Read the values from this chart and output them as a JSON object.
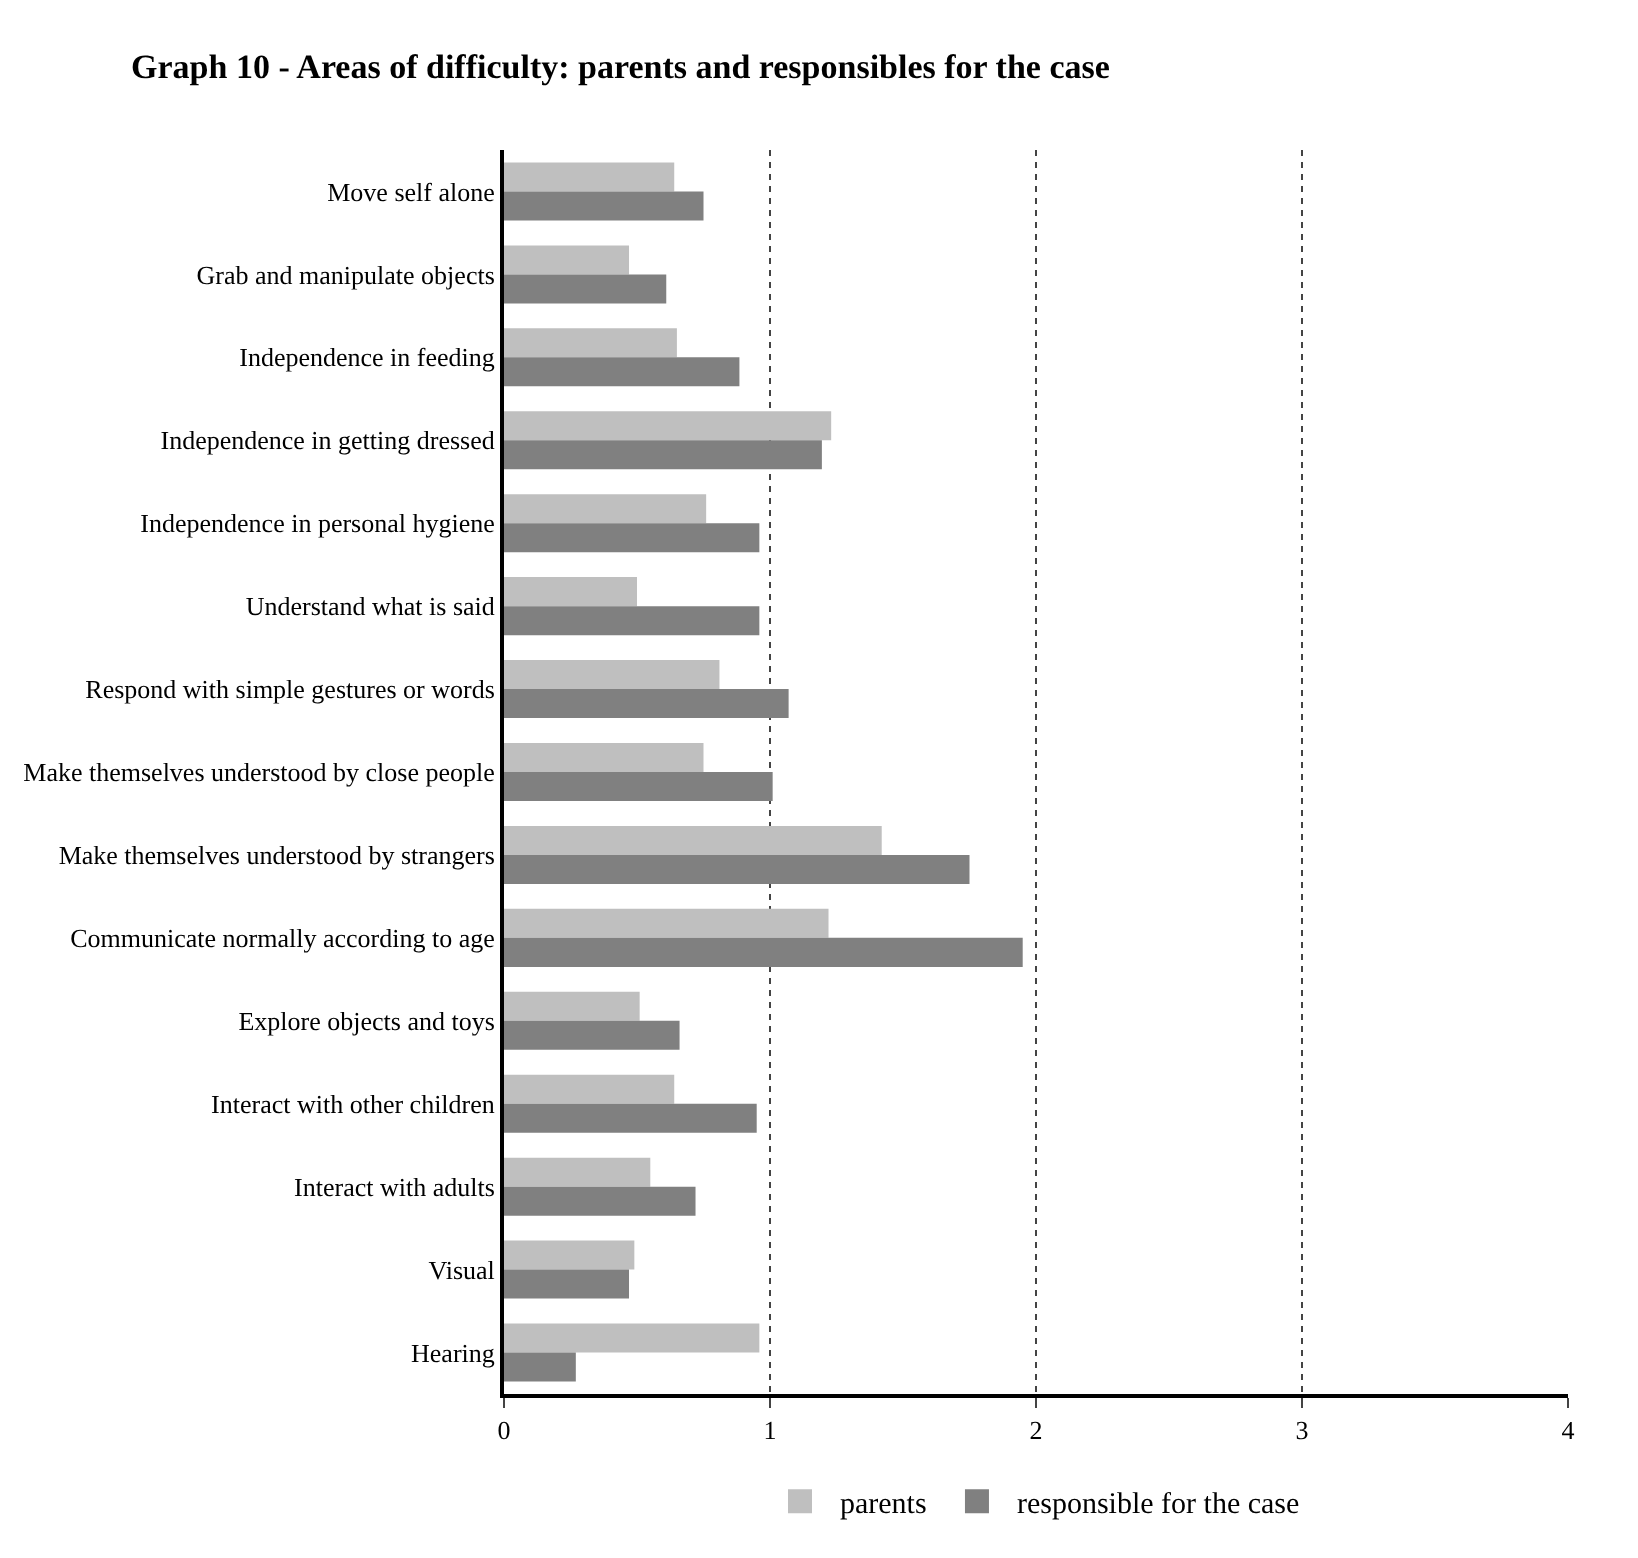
{
  "chart_data": {
    "type": "bar",
    "orientation": "horizontal",
    "title": "Graph 10 - Areas of difficulty: parents and responsibles for the case",
    "categories": [
      "Move self alone",
      "Grab and manipulate objects",
      "Independence in feeding",
      "Independence in getting dressed",
      "Independence in personal hygiene",
      "Understand what is said",
      "Respond with simple gestures or words",
      "Make themselves understood by close people",
      "Make themselves understood by strangers",
      "Communicate normally according to age",
      "Explore objects and toys",
      "Interact with other children",
      "Interact with adults",
      "Visual",
      "Hearing"
    ],
    "series": [
      {
        "name": "parents",
        "color": "#bfbfbf",
        "values": [
          0.64,
          0.47,
          0.65,
          1.23,
          0.76,
          0.5,
          0.81,
          0.75,
          1.42,
          1.22,
          0.51,
          0.64,
          0.55,
          0.49,
          0.96
        ]
      },
      {
        "name": "responsible for the case",
        "color": "#808080",
        "values": [
          0.75,
          0.61,
          0.885,
          1.195,
          0.96,
          0.96,
          1.07,
          1.01,
          1.75,
          1.95,
          0.66,
          0.95,
          0.72,
          0.47,
          0.27
        ]
      }
    ],
    "xlim": [
      0,
      4
    ],
    "xticks": [
      0,
      1,
      2,
      3,
      4
    ],
    "grid": "x",
    "legend": "bottom"
  }
}
